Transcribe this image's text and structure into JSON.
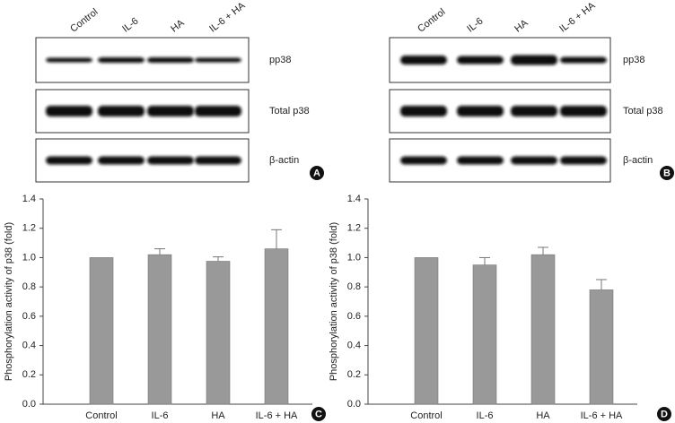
{
  "blots": [
    {
      "panel": "A",
      "lanes": [
        "Control",
        "IL-6",
        "HA",
        "IL-6 + HA"
      ],
      "rows": [
        "pp38",
        "Total p38",
        "β-actin"
      ]
    },
    {
      "panel": "B",
      "lanes": [
        "Control",
        "IL-6",
        "HA",
        "IL-6 + HA"
      ],
      "rows": [
        "pp38",
        "Total p38",
        "β-actin"
      ]
    }
  ],
  "chart_data": [
    {
      "type": "bar",
      "panel": "C",
      "ylabel": "Phosphorylation activity of p38 (fold)",
      "categories": [
        "Control",
        "IL-6",
        "HA",
        "IL-6 + HA"
      ],
      "values": [
        1.0,
        1.02,
        0.975,
        1.06
      ],
      "errors": [
        0,
        0.04,
        0.03,
        0.13
      ],
      "color": "#999999",
      "ylim": [
        0,
        1.4
      ],
      "yticks": [
        {
          "value": 0,
          "label": "0.0"
        },
        0.2,
        0.4,
        0.6,
        0.8,
        {
          "value": 1,
          "label": "1.0"
        },
        1.2,
        1.4
      ]
    },
    {
      "type": "bar",
      "panel": "D",
      "ylabel": "Phosphorylation activity of p38 (fold)",
      "categories": [
        "Control",
        "IL-6",
        "HA",
        "IL-6 + HA"
      ],
      "values": [
        1.0,
        0.95,
        1.02,
        0.78
      ],
      "errors": [
        0,
        0.05,
        0.05,
        0.07
      ],
      "color": "#999999",
      "ylim": [
        0,
        1.4
      ],
      "yticks": [
        {
          "value": 0,
          "label": "0.0"
        },
        0.2,
        0.4,
        0.6,
        0.8,
        {
          "value": 1,
          "label": "1.0"
        },
        1.2,
        1.4
      ]
    }
  ]
}
